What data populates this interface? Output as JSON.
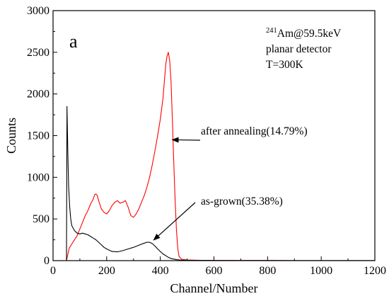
{
  "chart_data": {
    "type": "line",
    "panel_label": "a",
    "xlabel": "Channel/Number",
    "ylabel": "Counts",
    "xlim": [
      0,
      1200
    ],
    "ylim": [
      0,
      3000
    ],
    "xticks": [
      0,
      200,
      400,
      600,
      800,
      1000,
      1200
    ],
    "yticks": [
      0,
      500,
      1000,
      1500,
      2000,
      2500,
      3000
    ],
    "grid": false,
    "legend": "none",
    "info_box": {
      "line1_sup": "241",
      "line1": "Am@59.5keV",
      "line2": "planar detector",
      "line3": "T=300K"
    },
    "series": [
      {
        "label": "after annealing(14.79%)",
        "color": "#ff0000",
        "annotation_arrow_to": [
          447,
          1450
        ],
        "x": [
          50,
          60,
          70,
          80,
          90,
          100,
          110,
          120,
          130,
          140,
          150,
          155,
          160,
          165,
          170,
          180,
          190,
          200,
          210,
          220,
          230,
          240,
          250,
          260,
          270,
          280,
          290,
          300,
          310,
          320,
          330,
          340,
          350,
          360,
          370,
          380,
          390,
          400,
          410,
          415,
          420,
          425,
          430,
          435,
          440,
          445,
          450,
          455,
          460,
          465,
          470,
          480,
          500,
          550,
          600,
          700,
          800,
          900,
          1000,
          1100,
          1200
        ],
        "y": [
          0,
          150,
          200,
          250,
          300,
          380,
          460,
          540,
          600,
          680,
          740,
          790,
          800,
          780,
          720,
          620,
          580,
          560,
          600,
          660,
          700,
          720,
          690,
          700,
          720,
          640,
          540,
          520,
          560,
          620,
          700,
          780,
          880,
          1000,
          1150,
          1320,
          1500,
          1700,
          1950,
          2150,
          2350,
          2450,
          2500,
          2400,
          2150,
          1700,
          1200,
          750,
          380,
          150,
          50,
          15,
          8,
          4,
          3,
          2,
          2,
          1,
          1,
          1,
          1
        ]
      },
      {
        "label": "as-grown(35.38%)",
        "color": "#000000",
        "annotation_arrow_to": [
          370,
          230
        ],
        "x": [
          50,
          52,
          55,
          58,
          62,
          66,
          70,
          80,
          90,
          100,
          110,
          120,
          130,
          140,
          150,
          160,
          170,
          180,
          190,
          200,
          220,
          240,
          260,
          280,
          300,
          320,
          340,
          350,
          360,
          370,
          380,
          390,
          400,
          410,
          420,
          430,
          440,
          460,
          480,
          500,
          600,
          700,
          800,
          900,
          1000,
          1100,
          1200
        ],
        "y": [
          0,
          1850,
          1300,
          900,
          650,
          500,
          420,
          360,
          330,
          320,
          330,
          320,
          310,
          290,
          270,
          250,
          220,
          190,
          160,
          140,
          110,
          105,
          120,
          140,
          160,
          185,
          210,
          220,
          220,
          205,
          175,
          140,
          110,
          80,
          60,
          40,
          25,
          12,
          6,
          3,
          2,
          2,
          2,
          1,
          1,
          1,
          1
        ]
      }
    ]
  }
}
